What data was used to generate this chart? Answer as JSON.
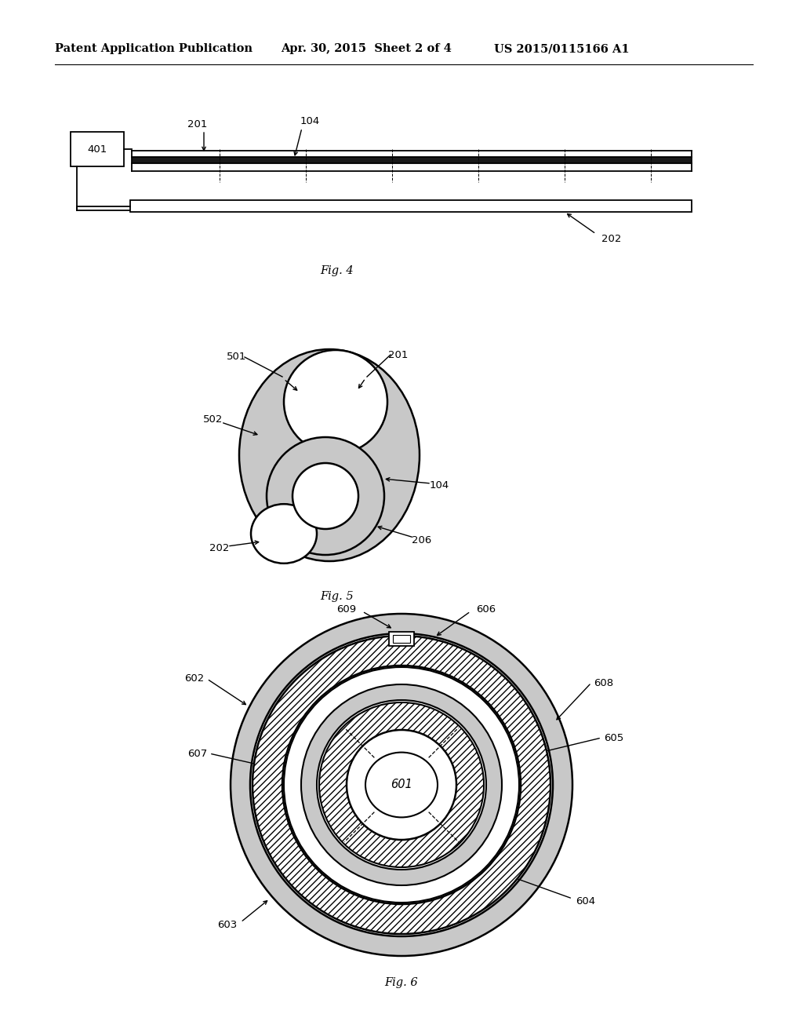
{
  "header_left": "Patent Application Publication",
  "header_mid": "Apr. 30, 2015  Sheet 2 of 4",
  "header_right": "US 2015/0115166 A1",
  "fig4_caption": "Fig. 4",
  "fig5_caption": "Fig. 5",
  "fig6_caption": "Fig. 6",
  "background_color": "#ffffff",
  "line_color": "#000000",
  "dot_fill": "#c8c8c8",
  "hatch_color": "#000000"
}
